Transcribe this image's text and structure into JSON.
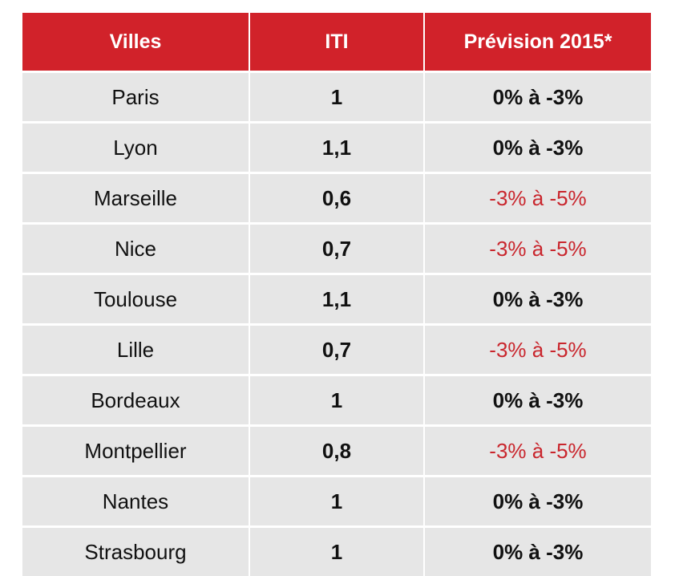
{
  "chart_data": {
    "type": "table",
    "columns": [
      "Villes",
      "ITI",
      "Prévision 2015*"
    ],
    "rows": [
      {
        "city": "Paris",
        "iti": "1",
        "prevision": "0% à -3%",
        "negative": false
      },
      {
        "city": "Lyon",
        "iti": "1,1",
        "prevision": "0% à -3%",
        "negative": false
      },
      {
        "city": "Marseille",
        "iti": "0,6",
        "prevision": "-3% à -5%",
        "negative": true
      },
      {
        "city": "Nice",
        "iti": "0,7",
        "prevision": "-3% à -5%",
        "negative": true
      },
      {
        "city": "Toulouse",
        "iti": "1,1",
        "prevision": "0% à -3%",
        "negative": false
      },
      {
        "city": "Lille",
        "iti": "0,7",
        "prevision": "-3% à -5%",
        "negative": true
      },
      {
        "city": "Bordeaux",
        "iti": "1",
        "prevision": "0% à -3%",
        "negative": false
      },
      {
        "city": "Montpellier",
        "iti": "0,8",
        "prevision": "-3% à -5%",
        "negative": true
      },
      {
        "city": "Nantes",
        "iti": "1",
        "prevision": "0% à -3%",
        "negative": false
      },
      {
        "city": "Strasbourg",
        "iti": "1",
        "prevision": "0% à -3%",
        "negative": false
      }
    ]
  },
  "colors": {
    "header_bg": "#d1222a",
    "row_bg": "#e6e6e6",
    "negative_text": "#c9262d"
  }
}
